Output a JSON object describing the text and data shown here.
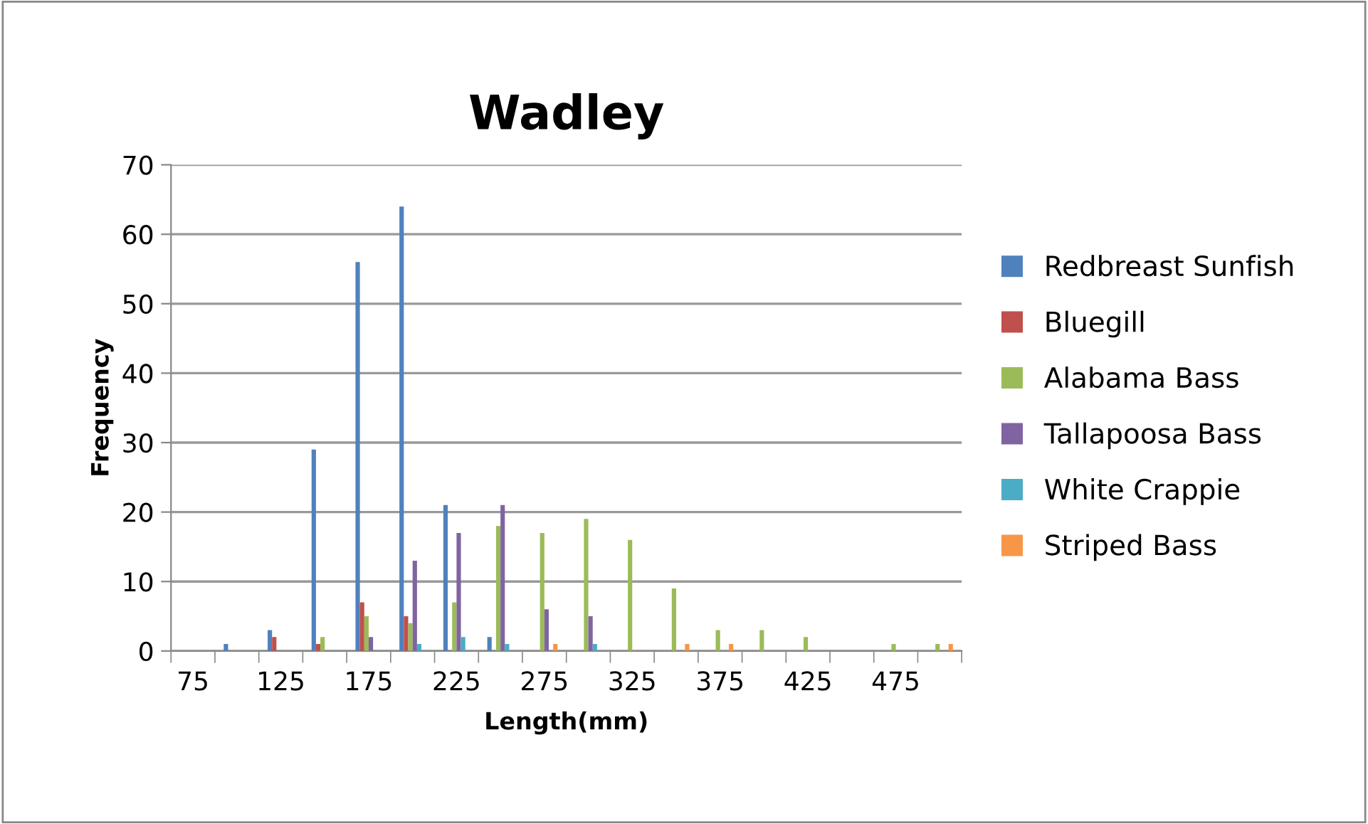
{
  "chart_data": {
    "type": "bar",
    "title": "Wadley",
    "xlabel": "Length(mm)",
    "ylabel": "Frequency",
    "categories": [
      "75",
      null,
      "125",
      null,
      "175",
      null,
      "225",
      null,
      "275",
      null,
      "325",
      null,
      "375",
      null,
      "425",
      null,
      "475",
      null
    ],
    "series": [
      {
        "name": "Redbreast Sunfish",
        "color": "#4f81bd",
        "values": [
          0,
          1,
          3,
          29,
          56,
          64,
          21,
          2,
          0,
          0,
          0,
          0,
          0,
          0,
          0,
          0,
          0,
          0
        ]
      },
      {
        "name": "Bluegill",
        "color": "#c0504d",
        "values": [
          0,
          0,
          2,
          1,
          7,
          5,
          0,
          0,
          0,
          0,
          0,
          0,
          0,
          0,
          0,
          0,
          0,
          0
        ]
      },
      {
        "name": "Alabama Bass",
        "color": "#9bbb59",
        "values": [
          0,
          0,
          0,
          2,
          5,
          4,
          7,
          18,
          17,
          19,
          16,
          9,
          3,
          3,
          2,
          0,
          1,
          1
        ]
      },
      {
        "name": "Tallapoosa Bass",
        "color": "#8064a2",
        "values": [
          0,
          0,
          0,
          0,
          2,
          13,
          17,
          21,
          6,
          5,
          0,
          0,
          0,
          0,
          0,
          0,
          0,
          0
        ]
      },
      {
        "name": "White Crappie",
        "color": "#4bacc6",
        "values": [
          0,
          0,
          0,
          0,
          0,
          1,
          2,
          1,
          0,
          1,
          0,
          0,
          0,
          0,
          0,
          0,
          0,
          0
        ]
      },
      {
        "name": "Striped Bass",
        "color": "#f79646",
        "values": [
          0,
          0,
          0,
          0,
          0,
          0,
          0,
          0,
          1,
          0,
          0,
          1,
          1,
          0,
          0,
          0,
          0,
          1
        ]
      }
    ],
    "ylim": [
      0,
      70
    ],
    "yticks": [
      0,
      10,
      20,
      30,
      40,
      50,
      60,
      70
    ],
    "grid": "y",
    "legend": "right"
  }
}
